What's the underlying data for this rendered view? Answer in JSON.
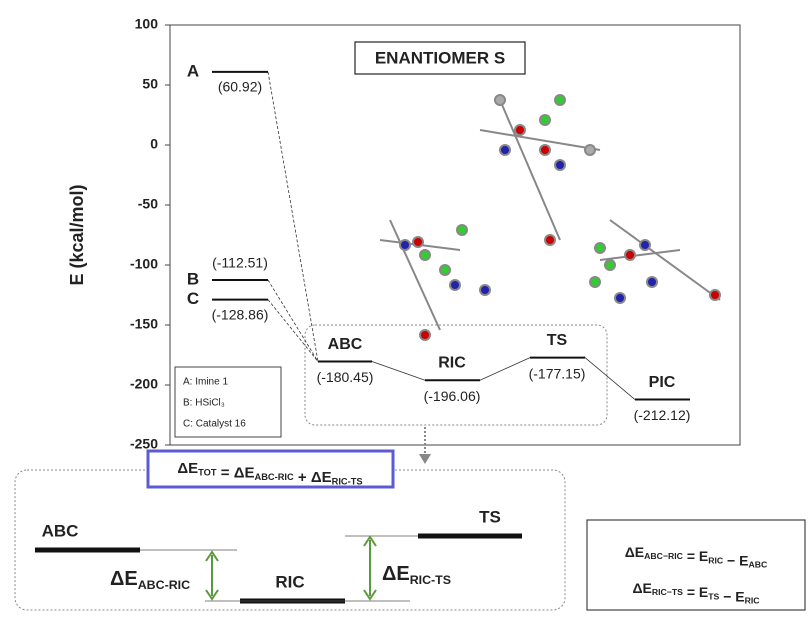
{
  "chart_data": {
    "type": "energy-diagram",
    "title": "ENANTIOMER S",
    "y_label": "E (kcal/mol)",
    "ylim": [
      -250,
      100
    ],
    "yticks": [
      100,
      50,
      0,
      -50,
      -100,
      -150,
      -200,
      -250
    ],
    "categories": [
      "A",
      "B",
      "C",
      "ABC",
      "RIC",
      "TS",
      "PIC"
    ],
    "values": [
      60.92,
      -112.51,
      -128.86,
      -180.45,
      -196.06,
      -177.15,
      -212.12
    ],
    "value_labels": [
      "(60.92)",
      "(-112.51)",
      "(-128.86)",
      "(-180.45)",
      "(-196.06)",
      "(-177.15)",
      "(-212.12)"
    ],
    "color": "#111111",
    "legend_items": [
      "A: Imine 1",
      "B: HSiCl₃",
      "C: Catalyst 16"
    ]
  },
  "detail_panel": {
    "total_equation": [
      {
        "text": "ΔE",
        "sub": "TOT"
      },
      {
        "text": " = ΔE",
        "sub": "ABC-RIC"
      },
      {
        "text": " + ΔE",
        "sub": "RIC-TS"
      }
    ],
    "levels": [
      "ABC",
      "RIC",
      "TS"
    ],
    "gap_labels": [
      [
        {
          "text": "ΔE",
          "sub": "ABC-RIC"
        }
      ],
      [
        {
          "text": "ΔE",
          "sub": "RIC-TS"
        }
      ]
    ],
    "definitions": [
      [
        {
          "text": "ΔE",
          "sub": "ABC−RIC"
        },
        {
          "text": " = E",
          "sub": "RIC"
        },
        {
          "text": " − E",
          "sub": "ABC"
        }
      ],
      [
        {
          "text": "ΔE",
          "sub": "RIC−TS"
        },
        {
          "text": " = E",
          "sub": "TS"
        },
        {
          "text": " − E",
          "sub": "RIC"
        }
      ]
    ]
  }
}
